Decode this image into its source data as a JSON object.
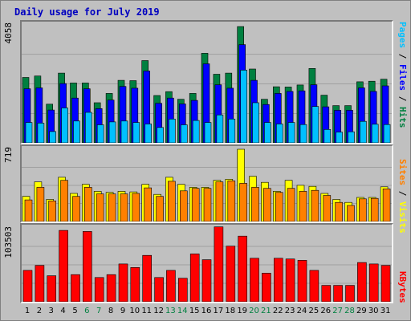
{
  "title": "Daily usage for July 2019",
  "colors": {
    "pages": "#00c0ff",
    "files": "#0000ff",
    "hits": "#008040",
    "sites": "#ff8000",
    "visits": "#ffff00",
    "kbytes": "#ff0000",
    "weekday_label": "#000000",
    "weekend_label": "#008040"
  },
  "legend": {
    "pages": "Pages",
    "files": "Files",
    "hits": "Hits",
    "sites": "Sites",
    "visits": "Visits",
    "kbytes": "KBytes",
    "sep": " / "
  },
  "chart_data": [
    {
      "type": "bar",
      "categories": [
        "1",
        "2",
        "3",
        "4",
        "5",
        "6",
        "7",
        "8",
        "9",
        "10",
        "11",
        "12",
        "13",
        "14",
        "15",
        "16",
        "17",
        "18",
        "19",
        "20",
        "21",
        "22",
        "23",
        "24",
        "25",
        "26",
        "27",
        "28",
        "29",
        "30",
        "31"
      ],
      "ymax_label": "4058",
      "ylim": [
        0,
        4058
      ],
      "series": [
        {
          "name": "Hits",
          "values": [
            2250,
            2300,
            1330,
            2400,
            2060,
            2060,
            1380,
            1700,
            2150,
            2140,
            2830,
            1630,
            1760,
            1500,
            1700,
            3080,
            2360,
            2400,
            4000,
            2540,
            1500,
            1930,
            1920,
            1990,
            2560,
            1640,
            1280,
            1280,
            2100,
            2120,
            2190
          ]
        },
        {
          "name": "Files",
          "values": [
            1860,
            1890,
            1130,
            2040,
            1540,
            1860,
            1180,
            1470,
            1940,
            1880,
            2470,
            1360,
            1540,
            1340,
            1460,
            2720,
            2000,
            1880,
            3380,
            2150,
            1320,
            1700,
            1770,
            1790,
            2000,
            1240,
            1120,
            1120,
            1890,
            1770,
            1960
          ]
        },
        {
          "name": "Pages",
          "values": [
            700,
            680,
            390,
            1200,
            750,
            1050,
            620,
            720,
            750,
            700,
            650,
            530,
            820,
            620,
            770,
            700,
            960,
            820,
            2500,
            1380,
            700,
            650,
            700,
            630,
            1250,
            460,
            370,
            380,
            740,
            640,
            630
          ]
        }
      ]
    },
    {
      "type": "bar",
      "categories": [
        "1",
        "2",
        "3",
        "4",
        "5",
        "6",
        "7",
        "8",
        "9",
        "10",
        "11",
        "12",
        "13",
        "14",
        "15",
        "16",
        "17",
        "18",
        "19",
        "20",
        "21",
        "22",
        "23",
        "24",
        "25",
        "26",
        "27",
        "28",
        "29",
        "30",
        "31"
      ],
      "ymax_label": "719",
      "ylim": [
        0,
        719
      ],
      "series": [
        {
          "name": "Visits",
          "values": [
            250,
            395,
            220,
            440,
            280,
            370,
            300,
            290,
            300,
            295,
            370,
            270,
            440,
            370,
            340,
            340,
            410,
            420,
            719,
            450,
            390,
            300,
            410,
            360,
            350,
            280,
            220,
            190,
            240,
            240,
            345
          ]
        },
        {
          "name": "Sites",
          "values": [
            215,
            340,
            205,
            410,
            250,
            340,
            275,
            275,
            275,
            280,
            335,
            250,
            400,
            305,
            330,
            330,
            395,
            405,
            380,
            340,
            330,
            290,
            330,
            300,
            310,
            260,
            190,
            160,
            225,
            230,
            325
          ]
        }
      ]
    },
    {
      "type": "bar",
      "categories": [
        "1",
        "2",
        "3",
        "4",
        "5",
        "6",
        "7",
        "8",
        "9",
        "10",
        "11",
        "12",
        "13",
        "14",
        "15",
        "16",
        "17",
        "18",
        "19",
        "20",
        "21",
        "22",
        "23",
        "24",
        "25",
        "26",
        "27",
        "28",
        "29",
        "30",
        "31"
      ],
      "ymax_label": "103503",
      "ylim": [
        0,
        103503
      ],
      "series": [
        {
          "name": "KBytes",
          "values": [
            44000,
            51000,
            36500,
            100000,
            38000,
            98500,
            34000,
            38000,
            53000,
            48000,
            65000,
            34000,
            44000,
            33000,
            67000,
            59000,
            105000,
            78000,
            92000,
            61000,
            40000,
            61000,
            60000,
            58000,
            44000,
            23000,
            23000,
            23000,
            55000,
            53000,
            51000
          ]
        }
      ]
    }
  ],
  "weekend_days": [
    6,
    7,
    13,
    14,
    20,
    21,
    27,
    28
  ]
}
